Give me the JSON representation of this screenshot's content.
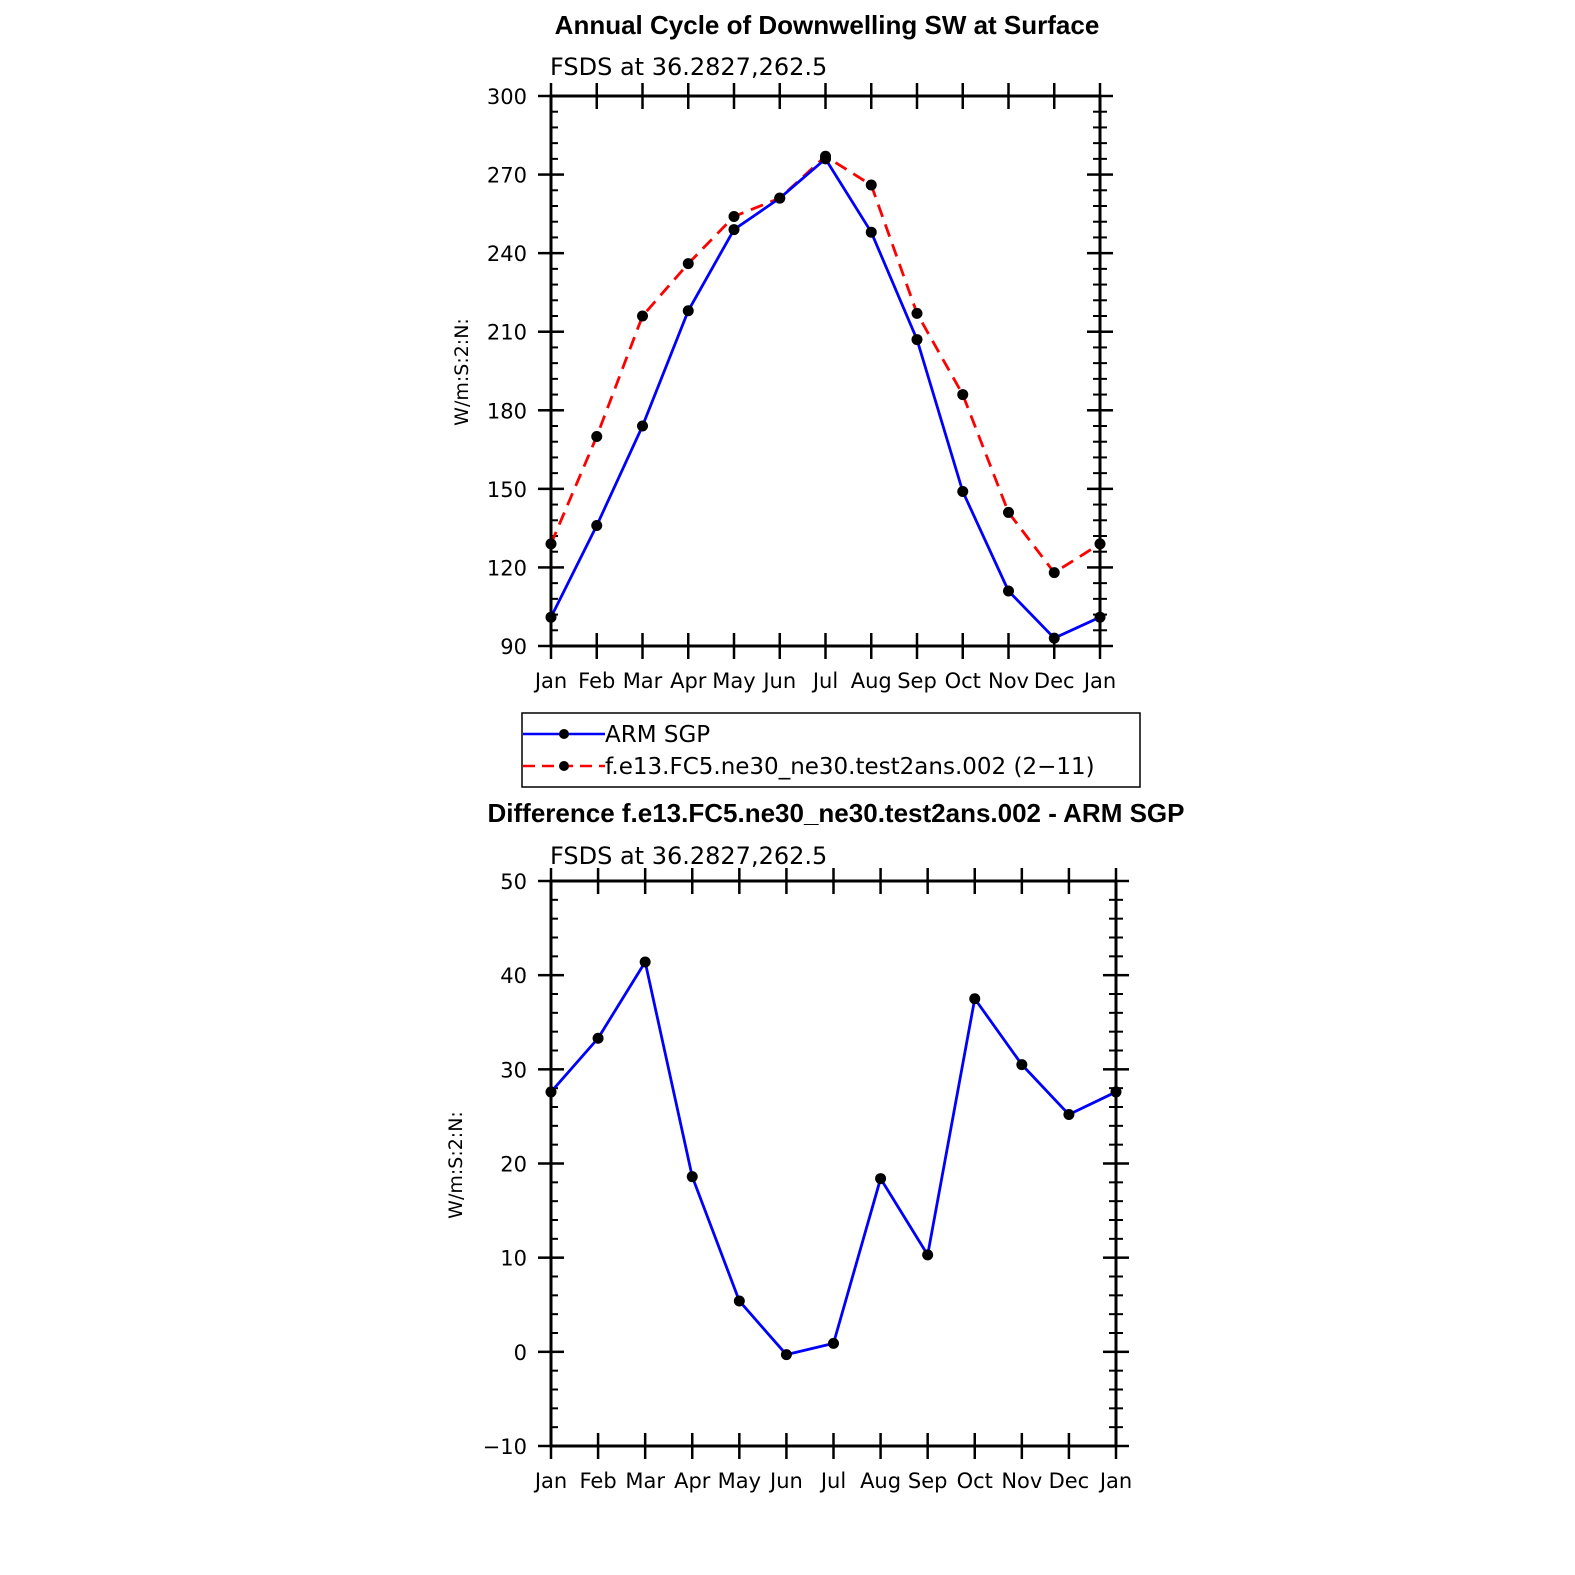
{
  "chart_data": [
    {
      "type": "line",
      "title": "Annual Cycle of Downwelling SW at Surface",
      "subtitle": "FSDS at 36.2827,262.5",
      "ylabel": "W/m:S:2:N:",
      "xlabel": "",
      "categories": [
        "Jan",
        "Feb",
        "Mar",
        "Apr",
        "May",
        "Jun",
        "Jul",
        "Aug",
        "Sep",
        "Oct",
        "Nov",
        "Dec",
        "Jan"
      ],
      "ylim": [
        90,
        300
      ],
      "yticks": [
        "90",
        "120",
        "150",
        "180",
        "210",
        "240",
        "270",
        "300"
      ],
      "grid": false,
      "series": [
        {
          "name": "ARM SGP",
          "color": "#0000ff",
          "dash": "solid",
          "values": [
            101,
            136,
            174,
            218,
            249,
            261,
            276,
            248,
            207,
            149,
            111,
            93,
            101
          ]
        },
        {
          "name": "f.e13.FC5.ne30_ne30.test2ans.002 (2−11)",
          "color": "#ff0000",
          "dash": "dashed",
          "values": [
            129,
            170,
            216,
            236,
            254,
            261,
            277,
            266,
            217,
            186,
            141,
            118,
            129
          ]
        }
      ],
      "legend": {
        "placement": "below",
        "entries": [
          "ARM SGP",
          "f.e13.FC5.ne30_ne30.test2ans.002 (2−11)"
        ]
      }
    },
    {
      "type": "line",
      "title": "Difference f.e13.FC5.ne30_ne30.test2ans.002 - ARM SGP",
      "subtitle": "FSDS at 36.2827,262.5",
      "ylabel": "W/m:S:2:N:",
      "xlabel": "",
      "categories": [
        "Jan",
        "Feb",
        "Mar",
        "Apr",
        "May",
        "Jun",
        "Jul",
        "Aug",
        "Sep",
        "Oct",
        "Nov",
        "Dec",
        "Jan"
      ],
      "ylim": [
        -10,
        50
      ],
      "yticks": [
        "−10",
        "0",
        "10",
        "20",
        "30",
        "40",
        "50"
      ],
      "grid": false,
      "series": [
        {
          "color": "#0000ff",
          "dash": "solid",
          "values": [
            27.6,
            33.3,
            41.4,
            18.6,
            5.4,
            -0.3,
            0.9,
            18.4,
            10.3,
            37.5,
            30.5,
            25.2,
            27.6
          ]
        }
      ]
    }
  ]
}
